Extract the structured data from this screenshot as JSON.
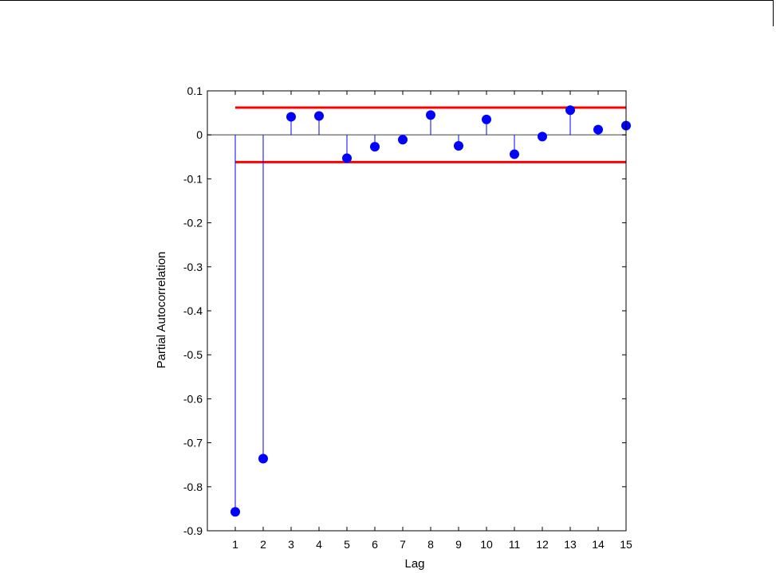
{
  "chart_data": {
    "type": "stem",
    "xlabel": "Lag",
    "ylabel": "Partial Autocorrelation",
    "xlim": [
      0,
      15
    ],
    "ylim": [
      -0.9,
      0.1
    ],
    "x_ticks": [
      "1",
      "2",
      "3",
      "4",
      "5",
      "6",
      "7",
      "8",
      "9",
      "10",
      "11",
      "12",
      "13",
      "14",
      "15"
    ],
    "y_ticks": [
      "0.1",
      "0",
      "-0.1",
      "-0.2",
      "-0.3",
      "-0.4",
      "-0.5",
      "-0.6",
      "-0.7",
      "-0.8",
      "-0.9"
    ],
    "y_tick_values": [
      0.1,
      0,
      -0.1,
      -0.2,
      -0.3,
      -0.4,
      -0.5,
      -0.6,
      -0.7,
      -0.8,
      -0.9
    ],
    "x": [
      1,
      2,
      3,
      4,
      5,
      6,
      7,
      8,
      9,
      10,
      11,
      12,
      13,
      14,
      15
    ],
    "values": [
      -0.857,
      -0.736,
      0.041,
      0.043,
      -0.053,
      -0.027,
      -0.011,
      0.045,
      -0.025,
      0.035,
      -0.044,
      -0.004,
      0.056,
      0.012,
      0.021
    ],
    "confidence_bounds": [
      0.062,
      -0.062
    ],
    "grid": false,
    "legend": "none",
    "colors": {
      "stem": "#0000ff",
      "marker": "#0000ff",
      "bounds": "#ff0000",
      "zero_line": "#7f7f7f",
      "axes": "#000000"
    }
  }
}
